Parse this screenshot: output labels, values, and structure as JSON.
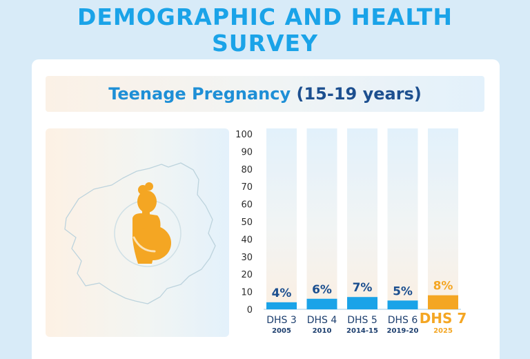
{
  "header": {
    "title_line1": "DEMOGRAPHIC AND HEALTH",
    "title_line2": "SURVEY"
  },
  "subtitle": {
    "main": "Teenage Pregnancy",
    "range": "(15-19 years)"
  },
  "illustration": {
    "icon": "pregnant-woman-icon",
    "map": "rwanda-map-outline"
  },
  "colors": {
    "bar": "#1aa3e8",
    "highlight": "#f4a623",
    "value_text": "#1c4f8f"
  },
  "chart_data": {
    "type": "bar",
    "title": "Teenage Pregnancy (15-19 years)",
    "categories": [
      "DHS 3",
      "DHS 4",
      "DHS 5",
      "DHS 6",
      "DHS 7"
    ],
    "years": [
      "2005",
      "2010",
      "2014-15",
      "2019-20",
      "2025"
    ],
    "values": [
      4,
      6,
      7,
      5,
      8
    ],
    "value_labels": [
      "4%",
      "6%",
      "7%",
      "5%",
      "8%"
    ],
    "highlight_index": 4,
    "ylim": [
      0,
      100
    ],
    "yticks": [
      0,
      10,
      20,
      30,
      40,
      50,
      60,
      70,
      80,
      90,
      100
    ],
    "ylabel": "",
    "xlabel": ""
  }
}
